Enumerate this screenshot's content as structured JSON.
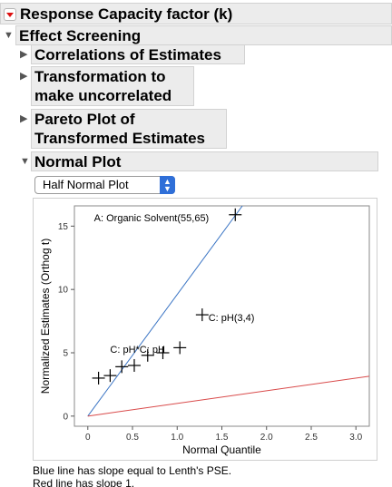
{
  "report": {
    "title": "Response Capacity factor (k)",
    "effect_screening": "Effect Screening",
    "correlations": "Correlations of Estimates",
    "transformation": [
      "Transformation to",
      "make uncorrelated"
    ],
    "pareto": [
      "Pareto Plot of",
      "Transformed Estimates"
    ],
    "normal_plot": "Normal Plot"
  },
  "dropdown": {
    "selected": "Half Normal Plot"
  },
  "chart_data": {
    "type": "scatter",
    "xlabel": "Normal Quantile",
    "ylabel": "Normalized Estimates (Orthog t)",
    "xlim": [
      -0.15,
      3.15
    ],
    "ylim": [
      -0.8,
      16.6
    ],
    "xticks": [
      0,
      0.5,
      1,
      1.5,
      2,
      2.5,
      3
    ],
    "xtick_labels": [
      "0",
      "0.5",
      "1.0",
      "1.5",
      "2.0",
      "2.5",
      "3.0"
    ],
    "yticks": [
      0,
      5,
      10,
      15
    ],
    "ytick_labels": [
      "0",
      "5",
      "10",
      "15"
    ],
    "points": [
      {
        "x": 0.12,
        "y": 3.0
      },
      {
        "x": 0.25,
        "y": 3.2
      },
      {
        "x": 0.38,
        "y": 3.9
      },
      {
        "x": 0.52,
        "y": 4.0
      },
      {
        "x": 0.67,
        "y": 4.8
      },
      {
        "x": 0.84,
        "y": 5.0
      },
      {
        "x": 1.03,
        "y": 5.4
      },
      {
        "x": 1.28,
        "y": 8.0
      },
      {
        "x": 1.65,
        "y": 15.9
      }
    ],
    "point_labels": [
      {
        "text": "A: Organic Solvent(55,65)",
        "x": 0.07,
        "y": 15.4
      },
      {
        "text": "C: pH(3,4)",
        "x": 1.35,
        "y": 7.5
      },
      {
        "text": "C: pH*C: pH",
        "x": 0.25,
        "y": 5.0
      }
    ],
    "lines": [
      {
        "name": "Lenth's PSE",
        "color": "#3a74c4",
        "slope": 9.6
      },
      {
        "name": "slope 1",
        "color": "#d94a4a",
        "slope": 1
      }
    ]
  },
  "notes": {
    "line1": "Blue line has slope equal to Lenth's PSE.",
    "line2": "Red line has slope 1."
  }
}
